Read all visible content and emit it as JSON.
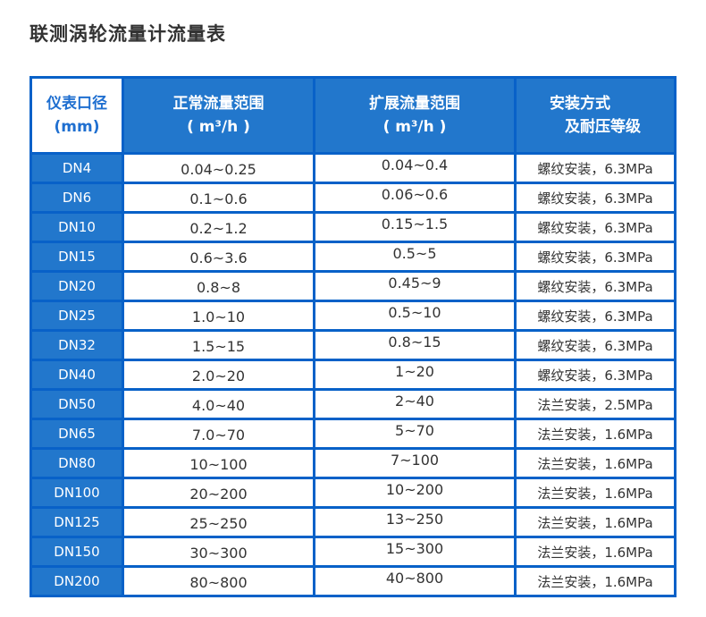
{
  "page": {
    "title": "联测涡轮流量计流量表"
  },
  "colors": {
    "cell_blue": "#2277cc",
    "border_blue": "#0861c8",
    "header_text": "#ffffff",
    "first_header_text": "#1f6fd0",
    "value_text": "#333333"
  },
  "table": {
    "headers": {
      "diameter": {
        "line1": "仪表口径",
        "line2": "(mm)"
      },
      "normal": {
        "line1": "正常流量范围",
        "line2": "( m³/h )"
      },
      "extended": {
        "line1": "扩展流量范围",
        "line2": "( m³/h )"
      },
      "install": {
        "line1": "安装方式",
        "line2": "及耐压等级"
      }
    },
    "rows": [
      {
        "dn": "DN4",
        "normal": "0.04~0.25",
        "extended": "0.04~0.4",
        "install": "螺纹安装，6.3MPa"
      },
      {
        "dn": "DN6",
        "normal": "0.1~0.6",
        "extended": "0.06~0.6",
        "install": "螺纹安装，6.3MPa"
      },
      {
        "dn": "DN10",
        "normal": "0.2~1.2",
        "extended": "0.15~1.5",
        "install": "螺纹安装，6.3MPa"
      },
      {
        "dn": "DN15",
        "normal": "0.6~3.6",
        "extended": "0.5~5",
        "install": "螺纹安装，6.3MPa"
      },
      {
        "dn": "DN20",
        "normal": "0.8~8",
        "extended": "0.45~9",
        "install": "螺纹安装，6.3MPa"
      },
      {
        "dn": "DN25",
        "normal": "1.0~10",
        "extended": "0.5~10",
        "install": "螺纹安装，6.3MPa"
      },
      {
        "dn": "DN32",
        "normal": "1.5~15",
        "extended": "0.8~15",
        "install": "螺纹安装，6.3MPa"
      },
      {
        "dn": "DN40",
        "normal": "2.0~20",
        "extended": "1~20",
        "install": "螺纹安装，6.3MPa"
      },
      {
        "dn": "DN50",
        "normal": "4.0~40",
        "extended": "2~40",
        "install": "法兰安装，2.5MPa"
      },
      {
        "dn": "DN65",
        "normal": "7.0~70",
        "extended": "5~70",
        "install": "法兰安装，1.6MPa"
      },
      {
        "dn": "DN80",
        "normal": "10~100",
        "extended": "7~100",
        "install": "法兰安装，1.6MPa"
      },
      {
        "dn": "DN100",
        "normal": "20~200",
        "extended": "10~200",
        "install": "法兰安装，1.6MPa"
      },
      {
        "dn": "DN125",
        "normal": "25~250",
        "extended": "13~250",
        "install": "法兰安装，1.6MPa"
      },
      {
        "dn": "DN150",
        "normal": "30~300",
        "extended": "15~300",
        "install": "法兰安装，1.6MPa"
      },
      {
        "dn": "DN200",
        "normal": "80~800",
        "extended": "40~800",
        "install": "法兰安装，1.6MPa"
      }
    ]
  }
}
